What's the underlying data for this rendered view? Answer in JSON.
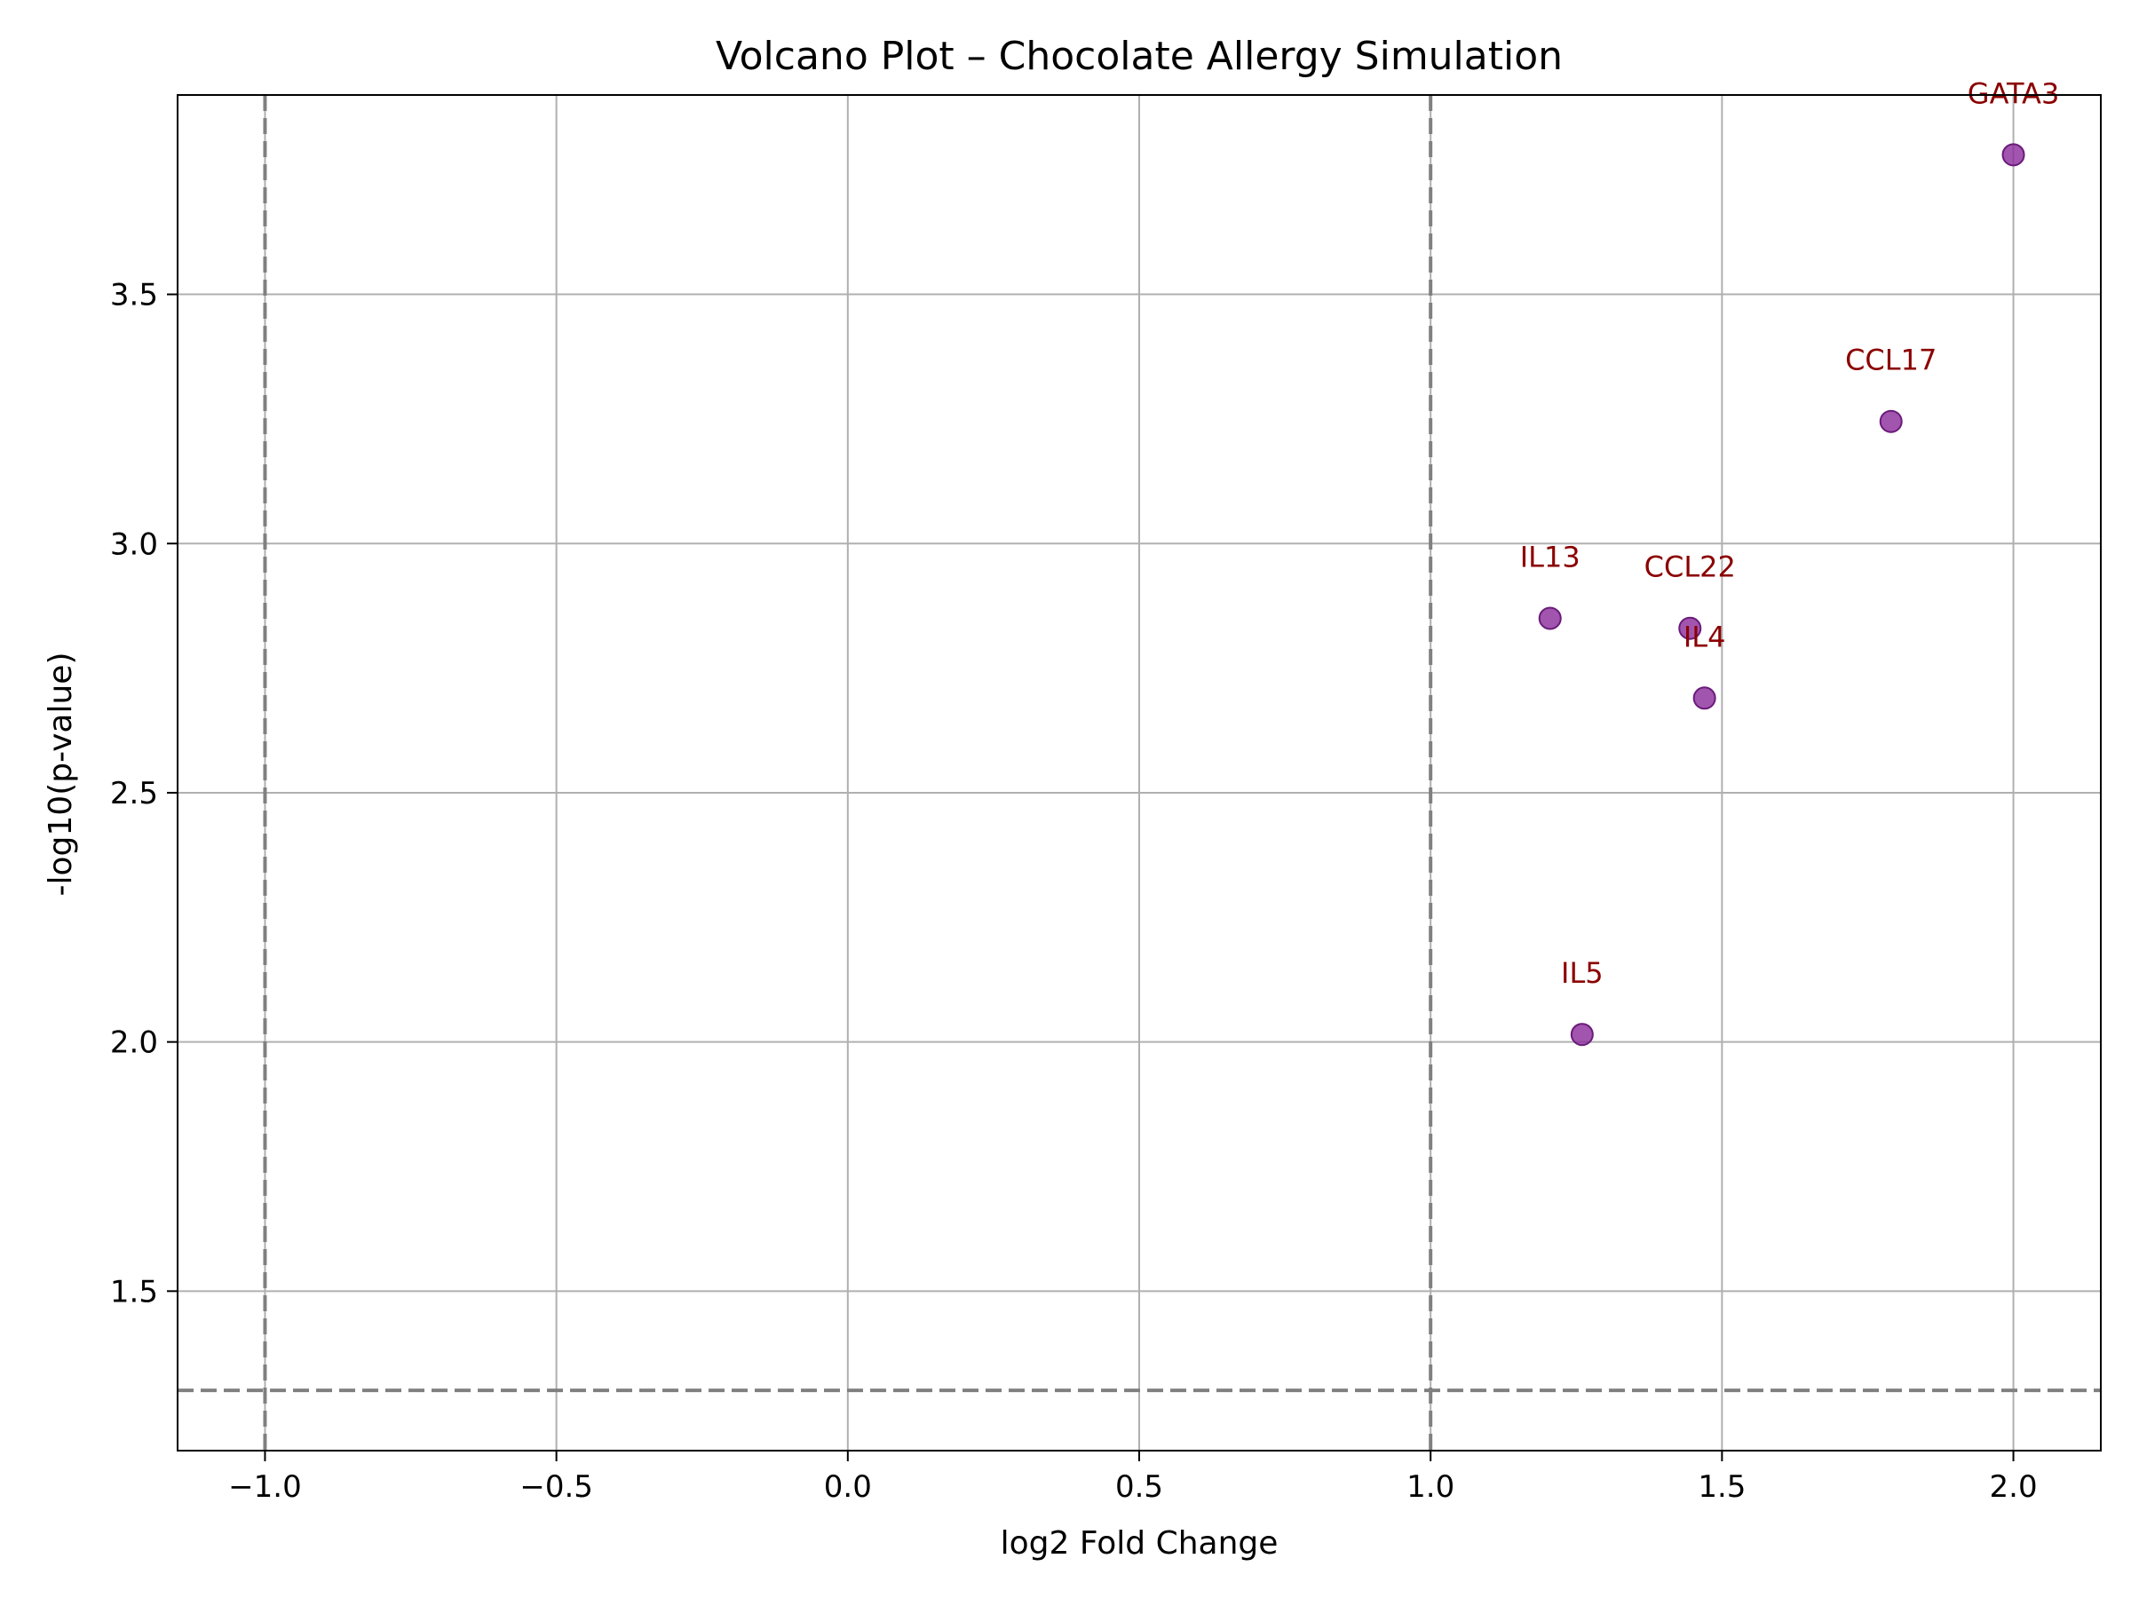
{
  "chart_data": {
    "type": "scatter",
    "title": "Volcano Plot – Chocolate Allergy Simulation",
    "xlabel": "log2 Fold Change",
    "ylabel": "-log10(p-value)",
    "xlim": [
      -1.15,
      2.15
    ],
    "ylim": [
      1.18,
      3.9
    ],
    "xticks": [
      -1.0,
      -0.5,
      0.0,
      0.5,
      1.0,
      1.5,
      2.0
    ],
    "xtick_labels": [
      "−1.0",
      "−0.5",
      "0.0",
      "0.5",
      "1.0",
      "1.5",
      "2.0"
    ],
    "yticks": [
      1.5,
      2.0,
      2.5,
      3.0,
      3.5
    ],
    "ytick_labels": [
      "1.5",
      "2.0",
      "2.5",
      "3.0",
      "3.5"
    ],
    "grid": true,
    "threshold_lines": {
      "vertical": [
        -1.0,
        1.0
      ],
      "horizontal": [
        1.301
      ],
      "style": "dashed",
      "color": "#808080"
    },
    "point_color": "#8b2b9b",
    "label_color": "#8b0000",
    "points": [
      {
        "label": "GATA3",
        "x": 2.0,
        "y": 3.78
      },
      {
        "label": "CCL17",
        "x": 1.79,
        "y": 3.245
      },
      {
        "label": "IL13",
        "x": 1.205,
        "y": 2.85
      },
      {
        "label": "CCL22",
        "x": 1.445,
        "y": 2.83
      },
      {
        "label": "IL4",
        "x": 1.47,
        "y": 2.69
      },
      {
        "label": "IL5",
        "x": 1.26,
        "y": 2.015
      }
    ]
  }
}
